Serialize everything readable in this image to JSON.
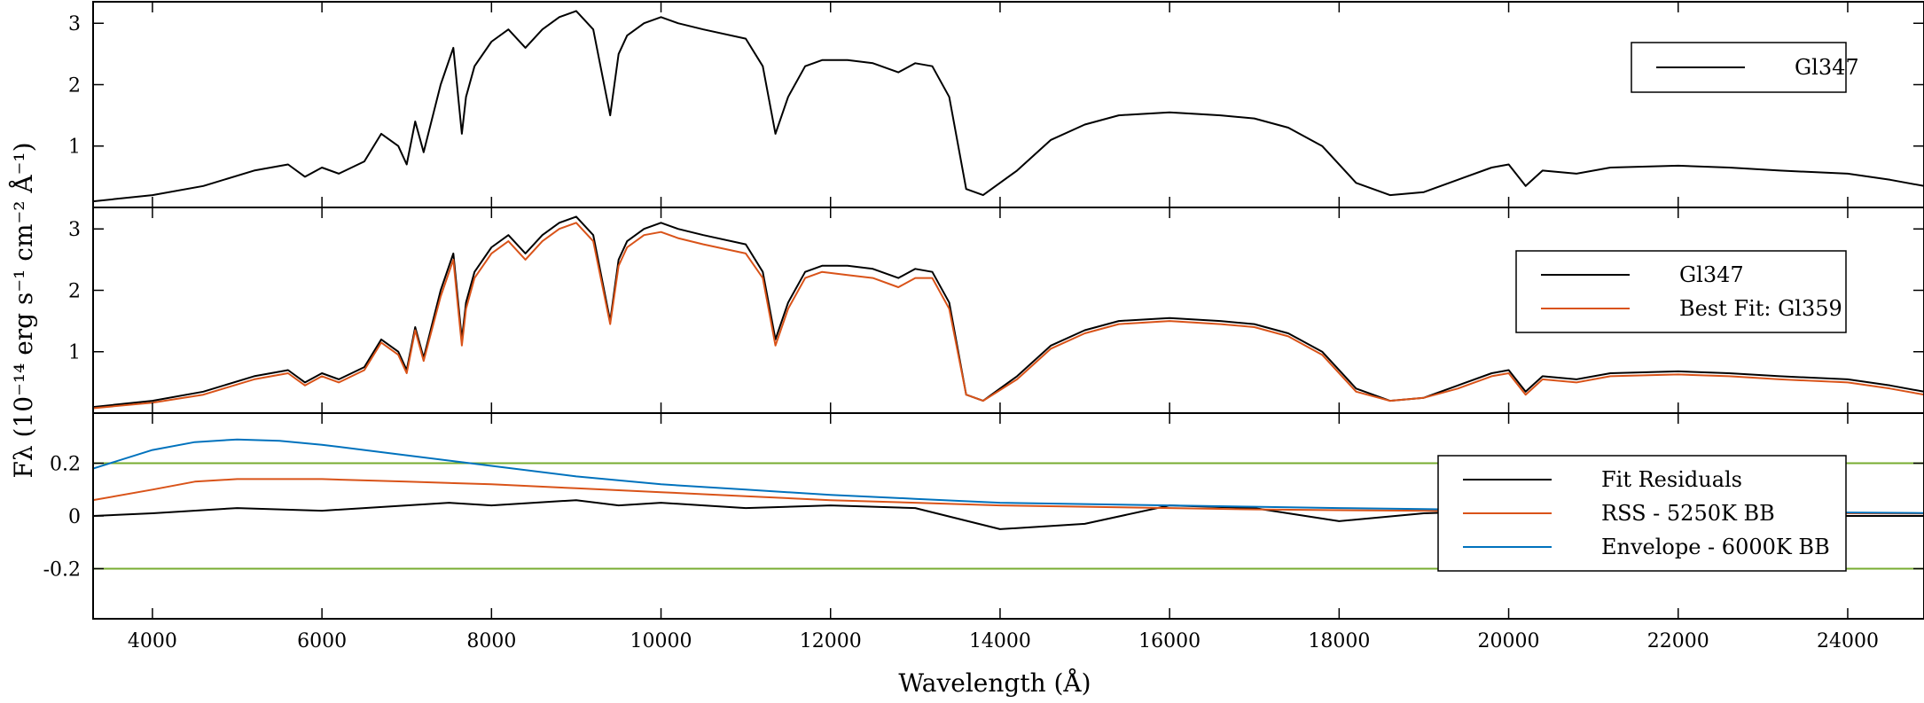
{
  "chart_data": {
    "type": "line",
    "xlabel": "Wavelength (Å)",
    "ylabel": "Fλ (10⁻¹⁴ erg s⁻¹ cm⁻² Å⁻¹)",
    "xlim": [
      3300,
      24900
    ],
    "x_ticks": [
      4000,
      6000,
      8000,
      10000,
      12000,
      14000,
      16000,
      18000,
      20000,
      22000,
      24000
    ],
    "x_tick_labels": [
      "4000",
      "6000",
      "8000",
      "10000",
      "12000",
      "14000",
      "16000",
      "18000",
      "20000",
      "22000",
      "24000"
    ],
    "panels": [
      {
        "ylim": [
          0,
          3.35
        ],
        "y_ticks": [
          1,
          2,
          3
        ],
        "y_tick_labels": [
          "1",
          "2",
          "3"
        ],
        "grid": false,
        "legend_placement": "upper-right",
        "series": [
          {
            "name": "Gl347",
            "color": "#000000",
            "x": [
              3300,
              4000,
              4600,
              5200,
              5600,
              5800,
              6000,
              6200,
              6500,
              6700,
              6900,
              7000,
              7100,
              7200,
              7400,
              7550,
              7650,
              7700,
              7800,
              8000,
              8200,
              8400,
              8600,
              8800,
              9000,
              9200,
              9400,
              9500,
              9600,
              9800,
              10000,
              10200,
              10500,
              11000,
              11200,
              11350,
              11500,
              11700,
              11900,
              12200,
              12500,
              12800,
              13000,
              13200,
              13400,
              13600,
              13800,
              14200,
              14600,
              15000,
              15400,
              16000,
              16600,
              17000,
              17400,
              17800,
              18200,
              18600,
              19000,
              19400,
              19800,
              20000,
              20200,
              20400,
              20800,
              21200,
              22000,
              22600,
              23200,
              24000,
              24500,
              24900
            ],
            "y": [
              0.1,
              0.2,
              0.35,
              0.6,
              0.7,
              0.5,
              0.65,
              0.55,
              0.75,
              1.2,
              1.0,
              0.7,
              1.4,
              0.9,
              2.0,
              2.6,
              1.2,
              1.8,
              2.3,
              2.7,
              2.9,
              2.6,
              2.9,
              3.1,
              3.2,
              2.9,
              1.5,
              2.5,
              2.8,
              3.0,
              3.1,
              3.0,
              2.9,
              2.75,
              2.3,
              1.2,
              1.8,
              2.3,
              2.4,
              2.4,
              2.35,
              2.2,
              2.35,
              2.3,
              1.8,
              0.3,
              0.2,
              0.6,
              1.1,
              1.35,
              1.5,
              1.55,
              1.5,
              1.45,
              1.3,
              1.0,
              0.4,
              0.2,
              0.25,
              0.45,
              0.65,
              0.7,
              0.35,
              0.6,
              0.55,
              0.65,
              0.68,
              0.65,
              0.6,
              0.55,
              0.45,
              0.35
            ]
          }
        ]
      },
      {
        "ylim": [
          0,
          3.35
        ],
        "y_ticks": [
          1,
          2,
          3
        ],
        "y_tick_labels": [
          "1",
          "2",
          "3"
        ],
        "grid": false,
        "legend_placement": "upper-right",
        "series": [
          {
            "name": "Gl347",
            "color": "#000000",
            "x": [
              3300,
              4000,
              4600,
              5200,
              5600,
              5800,
              6000,
              6200,
              6500,
              6700,
              6900,
              7000,
              7100,
              7200,
              7400,
              7550,
              7650,
              7700,
              7800,
              8000,
              8200,
              8400,
              8600,
              8800,
              9000,
              9200,
              9400,
              9500,
              9600,
              9800,
              10000,
              10200,
              10500,
              11000,
              11200,
              11350,
              11500,
              11700,
              11900,
              12200,
              12500,
              12800,
              13000,
              13200,
              13400,
              13600,
              13800,
              14200,
              14600,
              15000,
              15400,
              16000,
              16600,
              17000,
              17400,
              17800,
              18200,
              18600,
              19000,
              19400,
              19800,
              20000,
              20200,
              20400,
              20800,
              21200,
              22000,
              22600,
              23200,
              24000,
              24500,
              24900
            ],
            "y": [
              0.1,
              0.2,
              0.35,
              0.6,
              0.7,
              0.5,
              0.65,
              0.55,
              0.75,
              1.2,
              1.0,
              0.7,
              1.4,
              0.9,
              2.0,
              2.6,
              1.2,
              1.8,
              2.3,
              2.7,
              2.9,
              2.6,
              2.9,
              3.1,
              3.2,
              2.9,
              1.5,
              2.5,
              2.8,
              3.0,
              3.1,
              3.0,
              2.9,
              2.75,
              2.3,
              1.2,
              1.8,
              2.3,
              2.4,
              2.4,
              2.35,
              2.2,
              2.35,
              2.3,
              1.8,
              0.3,
              0.2,
              0.6,
              1.1,
              1.35,
              1.5,
              1.55,
              1.5,
              1.45,
              1.3,
              1.0,
              0.4,
              0.2,
              0.25,
              0.45,
              0.65,
              0.7,
              0.35,
              0.6,
              0.55,
              0.65,
              0.68,
              0.65,
              0.6,
              0.55,
              0.45,
              0.35
            ]
          },
          {
            "name": "Best Fit: Gl359",
            "color": "#d95319",
            "x": [
              3300,
              4000,
              4600,
              5200,
              5600,
              5800,
              6000,
              6200,
              6500,
              6700,
              6900,
              7000,
              7100,
              7200,
              7400,
              7550,
              7650,
              7700,
              7800,
              8000,
              8200,
              8400,
              8600,
              8800,
              9000,
              9200,
              9400,
              9500,
              9600,
              9800,
              10000,
              10200,
              10500,
              11000,
              11200,
              11350,
              11500,
              11700,
              11900,
              12200,
              12500,
              12800,
              13000,
              13200,
              13400,
              13600,
              13800,
              14200,
              14600,
              15000,
              15400,
              16000,
              16600,
              17000,
              17400,
              17800,
              18200,
              18600,
              19000,
              19400,
              19800,
              20000,
              20200,
              20400,
              20800,
              21200,
              22000,
              22600,
              23200,
              24000,
              24500,
              24900
            ],
            "y": [
              0.08,
              0.17,
              0.3,
              0.55,
              0.65,
              0.45,
              0.6,
              0.5,
              0.7,
              1.15,
              0.95,
              0.65,
              1.35,
              0.85,
              1.9,
              2.5,
              1.1,
              1.7,
              2.2,
              2.6,
              2.8,
              2.5,
              2.8,
              3.0,
              3.1,
              2.8,
              1.45,
              2.4,
              2.7,
              2.9,
              2.95,
              2.85,
              2.75,
              2.6,
              2.2,
              1.1,
              1.7,
              2.2,
              2.3,
              2.25,
              2.2,
              2.05,
              2.2,
              2.2,
              1.7,
              0.3,
              0.2,
              0.55,
              1.05,
              1.3,
              1.45,
              1.5,
              1.45,
              1.4,
              1.25,
              0.95,
              0.35,
              0.2,
              0.25,
              0.4,
              0.6,
              0.65,
              0.3,
              0.55,
              0.5,
              0.6,
              0.63,
              0.6,
              0.55,
              0.5,
              0.4,
              0.3
            ]
          }
        ]
      },
      {
        "ylim": [
          -0.39,
          0.39
        ],
        "y_ticks": [
          -0.2,
          0,
          0.2
        ],
        "y_tick_labels": [
          "-0.2",
          "0",
          "0.2"
        ],
        "grid": false,
        "legend_placement": "lower-right",
        "hlines": [
          0.2,
          -0.2
        ],
        "hline_color": "#77ac30",
        "series": [
          {
            "name": "Fit Residuals",
            "color": "#000000",
            "x": [
              3300,
              4000,
              5000,
              6000,
              7000,
              7500,
              8000,
              8500,
              9000,
              9500,
              10000,
              10500,
              11000,
              12000,
              13000,
              14000,
              15000,
              16000,
              17000,
              18000,
              19000,
              20000,
              21000,
              22000,
              23000,
              24000,
              24900
            ],
            "y": [
              0.0,
              0.01,
              0.03,
              0.02,
              0.04,
              0.05,
              0.04,
              0.05,
              0.06,
              0.04,
              0.05,
              0.04,
              0.03,
              0.04,
              0.03,
              -0.05,
              -0.03,
              0.04,
              0.03,
              -0.02,
              0.01,
              0.02,
              0.01,
              0.0,
              0.01,
              0.0,
              0.0
            ]
          },
          {
            "name": "RSS - 5250K BB",
            "color": "#d95319",
            "x": [
              3300,
              4000,
              4500,
              5000,
              5500,
              6000,
              7000,
              8000,
              9000,
              10000,
              11000,
              12000,
              13000,
              14000,
              15000,
              16000,
              17000,
              18000,
              19000,
              20000,
              21000,
              22000,
              23000,
              24000,
              24900
            ],
            "y": [
              0.06,
              0.1,
              0.13,
              0.14,
              0.14,
              0.14,
              0.13,
              0.12,
              0.105,
              0.09,
              0.075,
              0.06,
              0.05,
              0.04,
              0.035,
              0.03,
              0.025,
              0.022,
              0.02,
              0.017,
              0.015,
              0.013,
              0.011,
              0.01,
              0.009
            ]
          },
          {
            "name": "Envelope - 6000K BB",
            "color": "#0072bd",
            "x": [
              3300,
              4000,
              4500,
              5000,
              5500,
              6000,
              7000,
              8000,
              9000,
              10000,
              11000,
              12000,
              13000,
              14000,
              15000,
              16000,
              17000,
              18000,
              19000,
              20000,
              21000,
              22000,
              23000,
              24000,
              24900
            ],
            "y": [
              0.18,
              0.25,
              0.28,
              0.29,
              0.285,
              0.27,
              0.23,
              0.19,
              0.15,
              0.12,
              0.1,
              0.08,
              0.065,
              0.05,
              0.045,
              0.04,
              0.035,
              0.03,
              0.026,
              0.022,
              0.02,
              0.017,
              0.015,
              0.013,
              0.011
            ]
          }
        ]
      }
    ]
  }
}
